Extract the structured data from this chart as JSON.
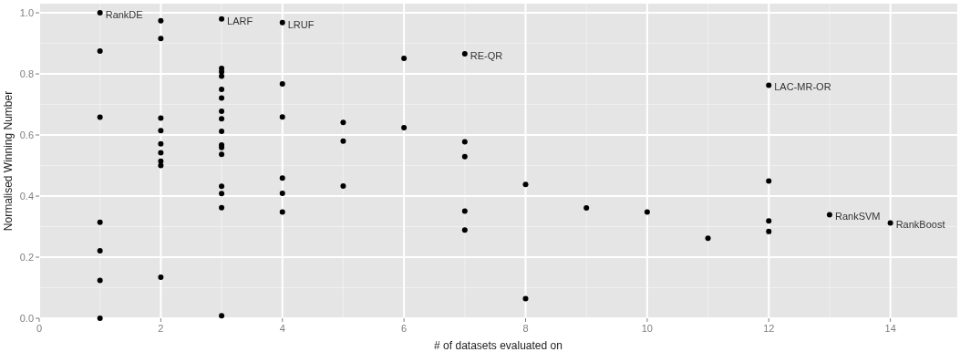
{
  "chart_data": {
    "type": "scatter",
    "xlabel": "# of datasets evaluated on",
    "ylabel": "Normalised Winning Number",
    "series": [
      {
        "color": "#000000",
        "x": [
          1,
          1,
          1,
          1,
          1,
          1,
          1,
          2,
          2,
          2,
          2,
          2,
          2,
          2,
          2,
          2,
          3,
          3,
          3,
          3,
          3,
          3,
          3,
          3,
          3,
          3,
          3,
          3,
          3,
          3,
          3,
          3,
          4,
          4,
          4,
          4,
          4,
          4,
          5,
          5,
          5,
          6,
          6,
          7,
          7,
          7,
          7,
          7,
          8,
          8,
          9,
          10,
          11,
          12,
          12,
          12,
          12,
          13,
          14
        ],
        "values": [
          1.0,
          0.875,
          0.658,
          0.314,
          0.221,
          0.124,
          0.0,
          0.974,
          0.916,
          0.655,
          0.614,
          0.571,
          0.542,
          0.514,
          0.5,
          0.134,
          0.98,
          0.818,
          0.807,
          0.793,
          0.749,
          0.721,
          0.678,
          0.653,
          0.612,
          0.567,
          0.559,
          0.537,
          0.432,
          0.408,
          0.362,
          0.008,
          0.968,
          0.767,
          0.659,
          0.459,
          0.409,
          0.348,
          0.641,
          0.58,
          0.433,
          0.851,
          0.624,
          0.866,
          0.578,
          0.529,
          0.351,
          0.289,
          0.438,
          0.064,
          0.361,
          0.348,
          0.262,
          0.763,
          0.449,
          0.319,
          0.284,
          0.339,
          0.312
        ]
      }
    ],
    "annotations": [
      {
        "text": "RankDE",
        "x": 1,
        "y": 1.0
      },
      {
        "text": "LARF",
        "x": 3,
        "y": 0.98
      },
      {
        "text": "LRUF",
        "x": 4,
        "y": 0.968
      },
      {
        "text": "RE-QR",
        "x": 7,
        "y": 0.866
      },
      {
        "text": "LAC-MR-OR",
        "x": 12,
        "y": 0.763
      },
      {
        "text": "RankSVM",
        "x": 13,
        "y": 0.339
      },
      {
        "text": "RankBoost",
        "x": 14,
        "y": 0.312
      }
    ],
    "xlim": [
      0,
      15.1
    ],
    "xticks": [
      0,
      2,
      4,
      6,
      8,
      10,
      12,
      14
    ],
    "ylim": [
      0,
      1.03
    ],
    "yticks": [
      {
        "value": 0,
        "label": "0.0"
      },
      {
        "value": 0.2,
        "label": "0.2"
      },
      {
        "value": 0.4,
        "label": "0.4"
      },
      {
        "value": 0.6,
        "label": "0.6"
      },
      {
        "value": 0.8,
        "label": "0.8"
      },
      {
        "value": 1,
        "label": "1.0"
      }
    ],
    "grid": true,
    "marker": "circle"
  }
}
